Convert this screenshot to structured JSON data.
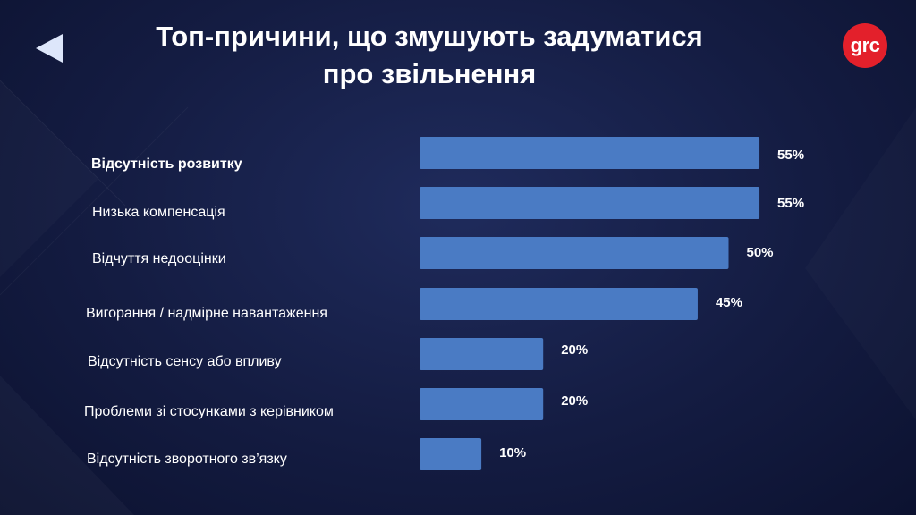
{
  "header": {
    "title_line1": "Топ-причини, що змушують задуматися",
    "title_line2": "про звільнення",
    "logo_text": "grc"
  },
  "colors": {
    "bar": "#4a7bc4",
    "accent_logo": "#e3202b",
    "text": "#ffffff"
  },
  "chart_data": {
    "type": "bar",
    "orientation": "horizontal",
    "title": "Топ-причини, що змушують задуматися про звільнення",
    "categories": [
      "Відсутність розвитку",
      "Низька компенсація",
      "Відчуття недооцінки",
      "Вигорання / надмірне навантаження",
      "Відсутність сенсу або впливу",
      "Проблеми зі стосунками з керівником",
      "Відсутність зворотного зв’язку"
    ],
    "values": [
      55,
      55,
      50,
      45,
      20,
      20,
      10
    ],
    "value_labels": [
      "55%",
      "55%",
      "50%",
      "45%",
      "20%",
      "20%",
      "10%"
    ],
    "unit": "%",
    "xlim": [
      0,
      60
    ],
    "grid": false,
    "legend": "none"
  }
}
